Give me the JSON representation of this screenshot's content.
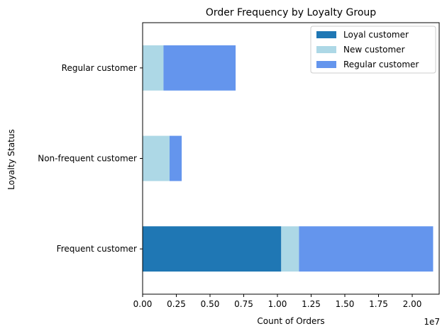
{
  "chart_data": {
    "type": "bar",
    "orientation": "horizontal",
    "stacked": true,
    "title": "Order Frequency by Loyalty Group",
    "xlabel": "Count of Orders",
    "ylabel": "Loyalty Status",
    "x_offset_label": "1e7",
    "xlim": [
      0,
      2.2
    ],
    "x_ticks": [
      "0.00",
      "0.25",
      "0.50",
      "0.75",
      "1.00",
      "1.25",
      "1.50",
      "1.75",
      "2.00"
    ],
    "categories": [
      "Frequent customer",
      "Non-frequent customer",
      "Regular customer"
    ],
    "series": [
      {
        "name": "Loyal customer",
        "color": "#1f77b4",
        "values": [
          1.028,
          0.0,
          0.0
        ]
      },
      {
        "name": "New customer",
        "color": "#add8e6",
        "values": [
          0.132,
          0.2,
          0.155
        ]
      },
      {
        "name": "Regular customer",
        "color": "#6495ed",
        "values": [
          0.995,
          0.09,
          0.535
        ]
      }
    ],
    "legend_position": "upper-right",
    "grid": false
  }
}
